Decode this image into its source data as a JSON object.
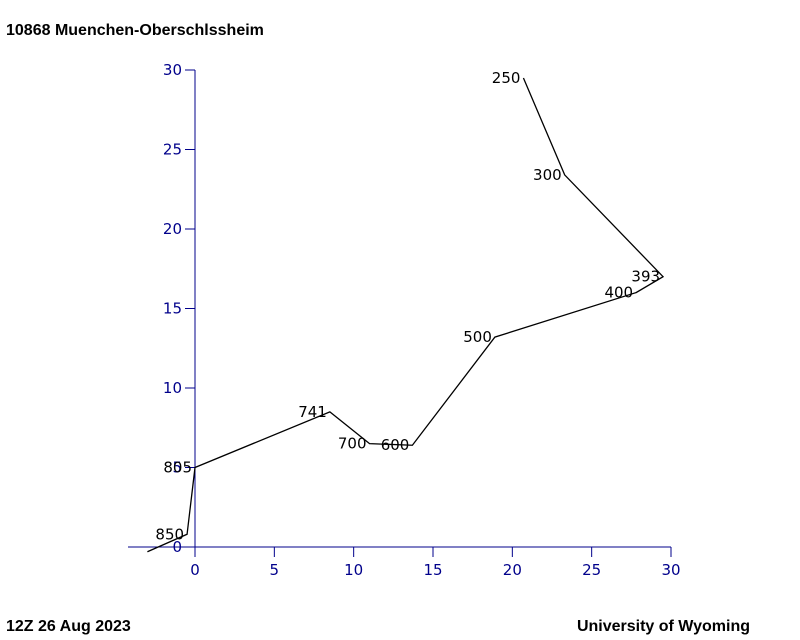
{
  "station_title": "10868  Muenchen-Oberschlssheim",
  "footer": {
    "date": "12Z 26 Aug 2023",
    "source": "University of Wyoming"
  },
  "colors": {
    "axis": "#00008b",
    "line": "#000000"
  },
  "chart_data": {
    "type": "line",
    "title": "",
    "xlabel": "",
    "ylabel": "",
    "xlim": [
      0,
      30
    ],
    "ylim": [
      0,
      30
    ],
    "xticks": [
      0,
      5,
      10,
      15,
      20,
      25,
      30
    ],
    "yticks": [
      0,
      5,
      10,
      15,
      20,
      25,
      30
    ],
    "grid": false,
    "series": [
      {
        "points": [
          {
            "x": -3.0,
            "y": -0.3,
            "label": ""
          },
          {
            "x": -0.5,
            "y": 0.8,
            "label": "850"
          },
          {
            "x": 0.0,
            "y": 5.0,
            "label": "805"
          },
          {
            "x": 8.5,
            "y": 8.5,
            "label": "741"
          },
          {
            "x": 11.0,
            "y": 6.5,
            "label": "700"
          },
          {
            "x": 13.7,
            "y": 6.4,
            "label": "600"
          },
          {
            "x": 18.9,
            "y": 13.2,
            "label": "500"
          },
          {
            "x": 27.8,
            "y": 16.0,
            "label": "400"
          },
          {
            "x": 29.5,
            "y": 17.0,
            "label": "393"
          },
          {
            "x": 23.3,
            "y": 23.4,
            "label": "300"
          },
          {
            "x": 20.7,
            "y": 29.5,
            "label": "250"
          }
        ]
      }
    ]
  }
}
